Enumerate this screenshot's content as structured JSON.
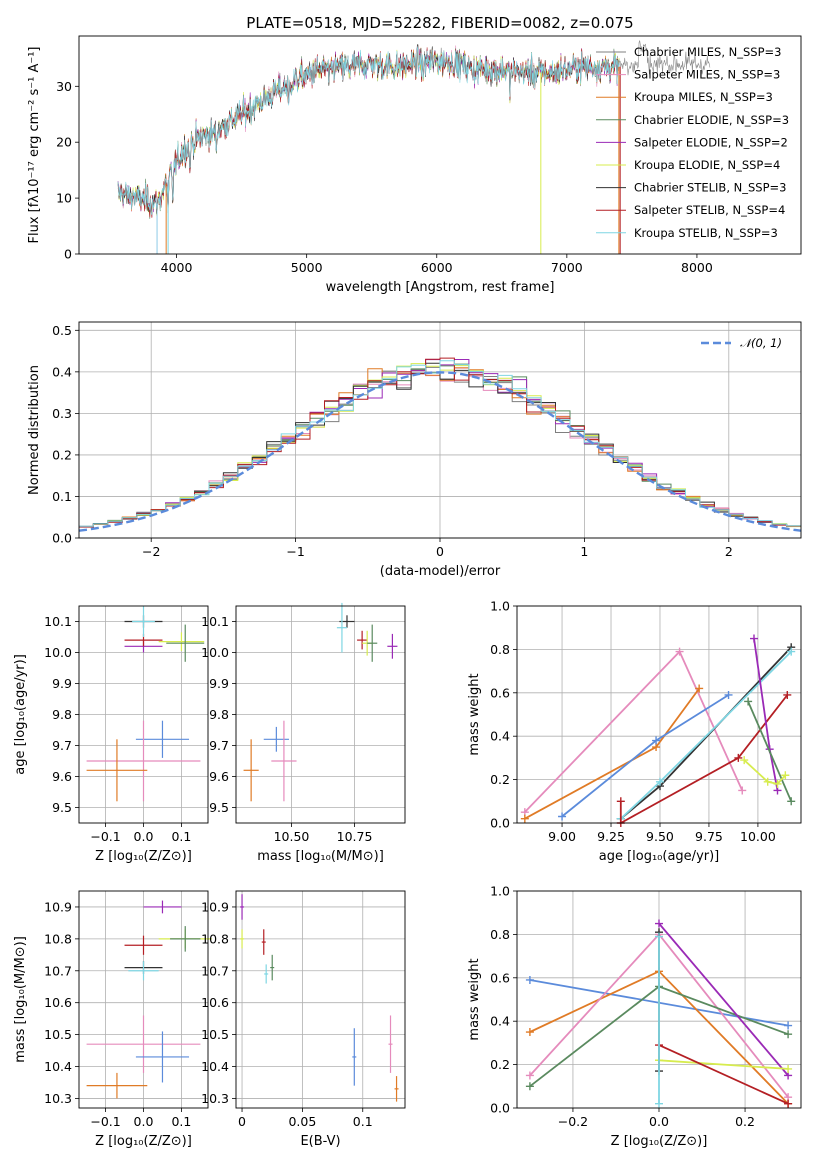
{
  "chart_data": [
    {
      "id": "spectrum",
      "type": "line",
      "title": "PLATE=0518, MJD=52282, FIBERID=0082, z=0.075",
      "xlabel": "wavelength [Angstrom, rest frame]",
      "ylabel": "Flux [fλ10⁻¹⁷ erg cm⁻² s⁻¹ A⁻¹]",
      "xlim": [
        3250,
        8800
      ],
      "ylim": [
        0,
        39
      ],
      "xticks": [
        4000,
        5000,
        6000,
        7000,
        8000
      ],
      "yticks": [
        0,
        10,
        20,
        30
      ],
      "grid": false,
      "legend_placement": "right",
      "series": [
        {
          "name": "Chabrier MILES, N_SSP=3",
          "color": "#7f7f7f"
        },
        {
          "name": "Salpeter MILES, N_SSP=3",
          "color": "#e58bbc"
        },
        {
          "name": "Kroupa MILES, N_SSP=3",
          "color": "#e07b26"
        },
        {
          "name": "Chabrier ELODIE, N_SSP=3",
          "color": "#5a8a5f"
        },
        {
          "name": "Salpeter ELODIE, N_SSP=2",
          "color": "#9a2ab6"
        },
        {
          "name": "Kroupa ELODIE, N_SSP=4",
          "color": "#d7ec4e"
        },
        {
          "name": "Chabrier STELIB, N_SSP=3",
          "color": "#333333"
        },
        {
          "name": "Salpeter STELIB, N_SSP=4",
          "color": "#b41f24"
        },
        {
          "name": "Kroupa STELIB, N_SSP=3",
          "color": "#7fd6e3"
        }
      ],
      "continuum": {
        "x": [
          3550,
          3700,
          3850,
          3950,
          4050,
          4150,
          4300,
          4500,
          4700,
          4900,
          5100,
          5300,
          5500,
          5700,
          5900,
          6100,
          6300,
          6500,
          6700,
          6900,
          7100,
          7300,
          7400
        ],
        "y": [
          11,
          10,
          9,
          14,
          18.5,
          20.5,
          22,
          25,
          28,
          31,
          33,
          33.5,
          34,
          33.5,
          34.5,
          34.5,
          33,
          33,
          32.5,
          32.5,
          33.5,
          33.5,
          33.5
        ]
      }
    },
    {
      "id": "residuals",
      "type": "histogram",
      "xlabel": "(data-model)/error",
      "ylabel": "Normed distribution",
      "xlim": [
        -2.5,
        2.5
      ],
      "ylim": [
        0,
        0.52
      ],
      "xticks": [
        -2,
        -1,
        0,
        1,
        2
      ],
      "yticks": [
        0.0,
        0.1,
        0.2,
        0.3,
        0.4,
        0.5
      ],
      "grid": true,
      "bin_width": 0.1,
      "legend_placement": "top-right",
      "reference": {
        "name": "𝒩(0, 1)",
        "color": "#5b8bdb"
      }
    },
    {
      "id": "age_vs_Z",
      "type": "scatter",
      "xlabel": "Z [log₁₀(Z/Z⊙)]",
      "ylabel": "age  [log₁₀(age/yr)]",
      "xlim": [
        -0.17,
        0.17
      ],
      "ylim": [
        9.45,
        10.15
      ],
      "xticks": [
        -0.1,
        0.0,
        0.1
      ],
      "yticks": [
        9.5,
        9.6,
        9.7,
        9.8,
        9.9,
        10.0,
        10.1
      ],
      "grid": true,
      "points": [
        {
          "color": "#333333",
          "x": 0.0,
          "xerr": 0.05,
          "y": 10.1,
          "yerr": 0.02
        },
        {
          "color": "#9a2ab6",
          "x": 0.0,
          "xerr": 0.05,
          "y": 10.02,
          "yerr": 0.02
        },
        {
          "color": "#b41f24",
          "x": 0.0,
          "xerr": 0.05,
          "y": 10.04,
          "yerr": 0.02
        },
        {
          "color": "#d7ec4e",
          "x": 0.1,
          "xerr": 0.06,
          "y": 10.035,
          "yerr": 0.03
        },
        {
          "color": "#5a8a5f",
          "x": 0.11,
          "xerr": 0.05,
          "y": 10.03,
          "yerr": 0.06
        },
        {
          "color": "#7fd6e3",
          "x": 0.0,
          "xerr": 0.03,
          "y": 10.1,
          "yerr": 0.05
        },
        {
          "color": "#5b8bdb",
          "x": 0.05,
          "xerr": 0.07,
          "y": 9.72,
          "yerr": 0.06
        },
        {
          "color": "#e58bbc",
          "x": 0.0,
          "xerr": 0.15,
          "y": 9.65,
          "yerr": 0.13
        },
        {
          "color": "#e07b26",
          "x": -0.07,
          "xerr": 0.08,
          "y": 9.62,
          "yerr": 0.1
        }
      ]
    },
    {
      "id": "age_vs_mass",
      "type": "scatter",
      "xlabel": "mass [log₁₀(M/M⊙)]",
      "ylabel": "",
      "xlim": [
        10.28,
        10.95
      ],
      "ylim": [
        9.45,
        10.15
      ],
      "xticks": [
        10.5,
        10.75
      ],
      "yticks": [
        9.5,
        9.6,
        9.7,
        9.8,
        9.9,
        10.0,
        10.1
      ],
      "grid": true,
      "points": [
        {
          "color": "#333333",
          "x": 10.72,
          "xerr": 0.03,
          "y": 10.1,
          "yerr": 0.02
        },
        {
          "color": "#9a2ab6",
          "x": 10.9,
          "xerr": 0.02,
          "y": 10.02,
          "yerr": 0.04
        },
        {
          "color": "#b41f24",
          "x": 10.78,
          "xerr": 0.02,
          "y": 10.04,
          "yerr": 0.03
        },
        {
          "color": "#d7ec4e",
          "x": 10.8,
          "xerr": 0.02,
          "y": 10.03,
          "yerr": 0.04
        },
        {
          "color": "#5a8a5f",
          "x": 10.82,
          "xerr": 0.02,
          "y": 10.03,
          "yerr": 0.06
        },
        {
          "color": "#7fd6e3",
          "x": 10.7,
          "xerr": 0.02,
          "y": 10.08,
          "yerr": 0.08
        },
        {
          "color": "#5b8bdb",
          "x": 10.44,
          "xerr": 0.05,
          "y": 9.72,
          "yerr": 0.04
        },
        {
          "color": "#e58bbc",
          "x": 10.47,
          "xerr": 0.05,
          "y": 9.65,
          "yerr": 0.13
        },
        {
          "color": "#e07b26",
          "x": 10.34,
          "xerr": 0.03,
          "y": 9.62,
          "yerr": 0.1
        }
      ]
    },
    {
      "id": "weights_vs_age",
      "type": "line",
      "xlabel": "age  [log₁₀(age/yr)]",
      "ylabel": "mass weight",
      "xlim": [
        8.77,
        10.22
      ],
      "ylim": [
        0.0,
        1.0
      ],
      "xticks": [
        9.0,
        9.25,
        9.5,
        9.75,
        10.0
      ],
      "yticks": [
        0.0,
        0.2,
        0.4,
        0.6,
        0.8,
        1.0
      ],
      "grid": true,
      "series": [
        {
          "color": "#e58bbc",
          "x": [
            8.81,
            9.6,
            9.92
          ],
          "y": [
            0.05,
            0.79,
            0.15
          ]
        },
        {
          "color": "#e07b26",
          "x": [
            8.81,
            9.48,
            9.7
          ],
          "y": [
            0.02,
            0.35,
            0.62
          ]
        },
        {
          "color": "#5b8bdb",
          "x": [
            9.0,
            9.48,
            9.85
          ],
          "y": [
            0.03,
            0.38,
            0.59
          ]
        },
        {
          "color": "#333333",
          "x": [
            9.3,
            9.5,
            10.17
          ],
          "y": [
            0.02,
            0.17,
            0.81
          ]
        },
        {
          "color": "#7fd6e3",
          "x": [
            9.3,
            9.5,
            10.17
          ],
          "y": [
            0.02,
            0.19,
            0.79
          ]
        },
        {
          "color": "#b41f24",
          "x": [
            9.3,
            9.3,
            9.9,
            10.15
          ],
          "y": [
            0.1,
            0.0,
            0.3,
            0.59
          ]
        },
        {
          "color": "#9a2ab6",
          "x": [
            9.98,
            10.06,
            10.1
          ],
          "y": [
            0.85,
            0.34,
            0.15
          ]
        },
        {
          "color": "#5a8a5f",
          "x": [
            9.95,
            10.17
          ],
          "y": [
            0.56,
            0.1
          ]
        },
        {
          "color": "#d7ec4e",
          "x": [
            9.93,
            10.05,
            10.1,
            10.14
          ],
          "y": [
            0.29,
            0.19,
            0.18,
            0.22
          ]
        }
      ]
    },
    {
      "id": "mass_vs_Z",
      "type": "scatter",
      "xlabel": "Z [log₁₀(Z/Z⊙)]",
      "ylabel": "mass [log₁₀(M/M⊙)]",
      "xlim": [
        -0.17,
        0.17
      ],
      "ylim": [
        10.27,
        10.95
      ],
      "xticks": [
        -0.1,
        0.0,
        0.1
      ],
      "yticks": [
        10.3,
        10.4,
        10.5,
        10.6,
        10.7,
        10.8,
        10.9
      ],
      "grid": true,
      "points": [
        {
          "color": "#9a2ab6",
          "x": 0.05,
          "xerr": 0.05,
          "y": 10.9,
          "yerr": 0.02
        },
        {
          "color": "#b41f24",
          "x": 0.0,
          "xerr": 0.05,
          "y": 10.78,
          "yerr": 0.03
        },
        {
          "color": "#d7ec4e",
          "x": 0.11,
          "xerr": 0.07,
          "y": 10.8,
          "yerr": 0.03
        },
        {
          "color": "#5a8a5f",
          "x": 0.11,
          "xerr": 0.04,
          "y": 10.8,
          "yerr": 0.04
        },
        {
          "color": "#333333",
          "x": 0.0,
          "xerr": 0.05,
          "y": 10.71,
          "yerr": 0.02
        },
        {
          "color": "#7fd6e3",
          "x": 0.0,
          "xerr": 0.04,
          "y": 10.7,
          "yerr": 0.03
        },
        {
          "color": "#e58bbc",
          "x": 0.0,
          "xerr": 0.15,
          "y": 10.47,
          "yerr": 0.09
        },
        {
          "color": "#5b8bdb",
          "x": 0.05,
          "xerr": 0.07,
          "y": 10.43,
          "yerr": 0.08
        },
        {
          "color": "#e07b26",
          "x": -0.07,
          "xerr": 0.08,
          "y": 10.34,
          "yerr": 0.04
        }
      ]
    },
    {
      "id": "mass_vs_EBV",
      "type": "scatter",
      "xlabel": "E(B-V)",
      "ylabel": "",
      "xlim": [
        -0.005,
        0.135
      ],
      "ylim": [
        10.27,
        10.95
      ],
      "xticks": [
        0.0,
        0.05,
        0.1
      ],
      "yticks": [
        10.3,
        10.4,
        10.5,
        10.6,
        10.7,
        10.8,
        10.9
      ],
      "grid": true,
      "points": [
        {
          "color": "#9a2ab6",
          "x": 0.0,
          "y": 10.9,
          "yerr": 0.04
        },
        {
          "color": "#d7ec4e",
          "x": 0.0,
          "y": 10.8,
          "yerr": 0.03
        },
        {
          "color": "#b41f24",
          "x": 0.018,
          "y": 10.79,
          "yerr": 0.04
        },
        {
          "color": "#5a8a5f",
          "x": 0.025,
          "y": 10.71,
          "yerr": 0.04
        },
        {
          "color": "#7fd6e3",
          "x": 0.02,
          "y": 10.69,
          "yerr": 0.03
        },
        {
          "color": "#5b8bdb",
          "x": 0.093,
          "y": 10.43,
          "yerr": 0.09
        },
        {
          "color": "#e58bbc",
          "x": 0.123,
          "y": 10.47,
          "yerr": 0.09
        },
        {
          "color": "#e07b26",
          "x": 0.128,
          "y": 10.33,
          "yerr": 0.04
        }
      ]
    },
    {
      "id": "weights_vs_Z",
      "type": "line",
      "xlabel": "Z [log₁₀(Z/Z⊙)]",
      "ylabel": "mass weight",
      "xlim": [
        -0.33,
        0.33
      ],
      "ylim": [
        0.0,
        1.0
      ],
      "xticks": [
        -0.2,
        0.0,
        0.2
      ],
      "yticks": [
        0.0,
        0.2,
        0.4,
        0.6,
        0.8,
        1.0
      ],
      "grid": true,
      "series": [
        {
          "color": "#5b8bdb",
          "x": [
            -0.3,
            0.3
          ],
          "y": [
            0.59,
            0.38
          ]
        },
        {
          "color": "#e07b26",
          "x": [
            -0.3,
            0.0,
            0.3
          ],
          "y": [
            0.35,
            0.63,
            0.02
          ]
        },
        {
          "color": "#e58bbc",
          "x": [
            -0.3,
            0.0,
            0.3
          ],
          "y": [
            0.15,
            0.8,
            0.05
          ]
        },
        {
          "color": "#5a8a5f",
          "x": [
            -0.3,
            0.0,
            0.3
          ],
          "y": [
            0.1,
            0.56,
            0.34
          ]
        },
        {
          "color": "#9a2ab6",
          "x": [
            0.0,
            0.3
          ],
          "y": [
            0.85,
            0.15
          ]
        },
        {
          "color": "#d7ec4e",
          "x": [
            0.0,
            0.3
          ],
          "y": [
            0.22,
            0.18
          ]
        },
        {
          "color": "#b41f24",
          "x": [
            0.0,
            0.3
          ],
          "y": [
            0.29,
            0.02
          ]
        },
        {
          "color": "#333333",
          "x": [
            0.0,
            0.0
          ],
          "y": [
            0.81,
            0.17
          ]
        },
        {
          "color": "#7fd6e3",
          "x": [
            0.0,
            0.0
          ],
          "y": [
            0.79,
            0.02
          ]
        }
      ]
    }
  ]
}
